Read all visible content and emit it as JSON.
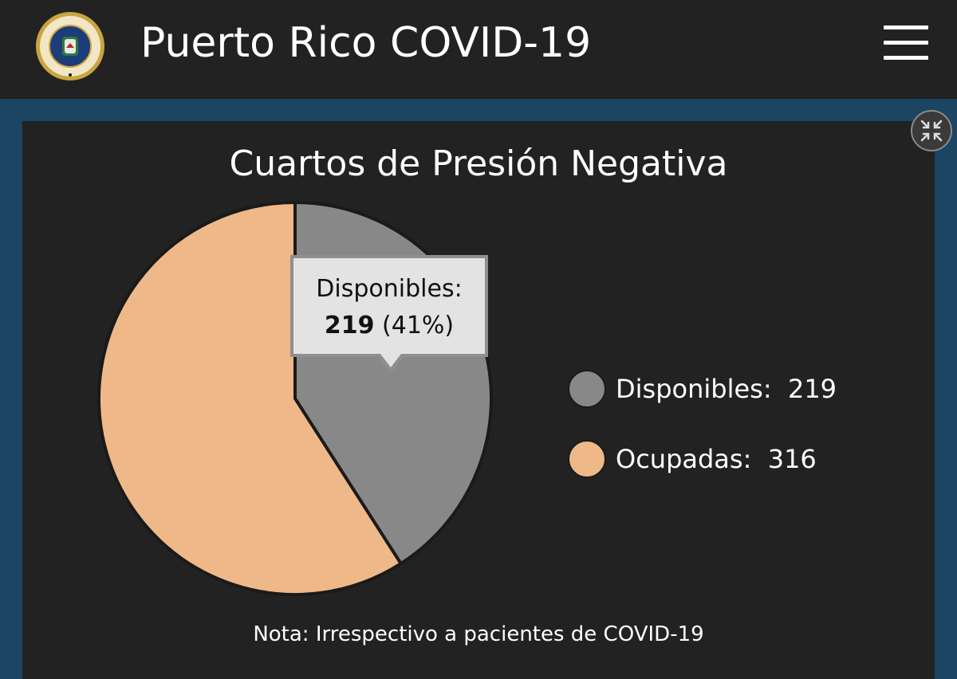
{
  "header": {
    "title": "Puerto Rico COVID-19",
    "seal_icon": "government-seal-icon",
    "menu_icon": "hamburger-menu-icon"
  },
  "panel": {
    "collapse_icon": "collapse-arrows-icon"
  },
  "chart_data": {
    "type": "pie",
    "title": "Cuartos de Presión Negativa",
    "slices": [
      {
        "name": "Disponibles",
        "value": 219,
        "color": "#888888"
      },
      {
        "name": "Ocupadas",
        "value": 316,
        "color": "#efb888"
      }
    ],
    "legend": [
      {
        "label": "Disponibles:  219",
        "color": "#888888"
      },
      {
        "label": "Ocupadas:  316",
        "color": "#efb888"
      }
    ],
    "legend_position": "right",
    "tooltip": {
      "label": "Disponibles:",
      "value": "219",
      "percent": "(41%)"
    },
    "note": "Nota: Irrespectivo a pacientes de COVID-19"
  },
  "colors": {
    "header_bg": "#222222",
    "page_bg": "#1b4563",
    "panel_bg": "#222222"
  }
}
